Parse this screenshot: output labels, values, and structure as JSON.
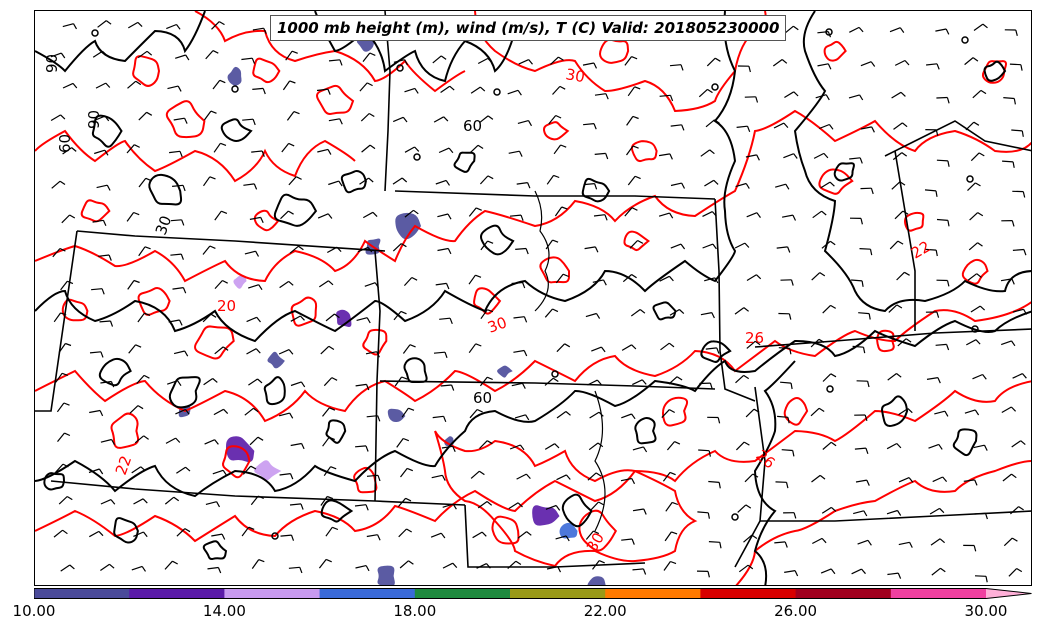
{
  "title": "1000 mb height (m), wind (m/s), T (C) Valid: 201805230000",
  "contour_labels": {
    "temperature": [
      "30",
      "30",
      "22",
      "26",
      "26",
      "22",
      "20",
      "30"
    ],
    "height": [
      "90",
      "90",
      "60",
      "60",
      "30",
      "60"
    ]
  },
  "colorbar": {
    "tick_labels": [
      "10.00",
      "14.00",
      "18.00",
      "22.00",
      "26.00",
      "30.00"
    ],
    "min": 10,
    "max": 30,
    "extend": "max",
    "colors": [
      "#4a4a9a",
      "#5a1aa8",
      "#c89af0",
      "#3a6ad8",
      "#1e8a3e",
      "#9a9a18",
      "#ff7a00",
      "#d80000",
      "#a0001e",
      "#f040a0",
      "#ffb0d8"
    ]
  },
  "layer_colors": {
    "height_contour": "#000000",
    "temperature_contour": "#ff0000",
    "state_border": "#000000",
    "wind_barb": "#000000"
  }
}
